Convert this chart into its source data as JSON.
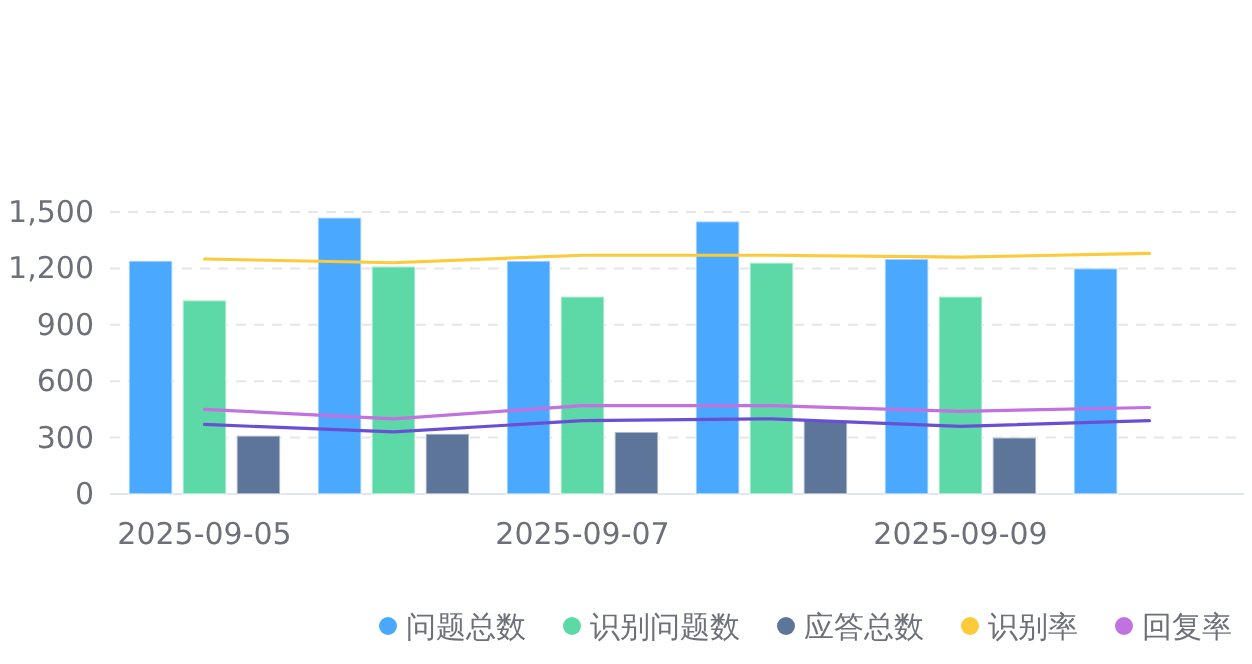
{
  "chart_data": {
    "type": "bar",
    "categories": [
      "2025-09-05",
      null,
      "2025-09-07",
      null,
      "2025-09-09",
      null
    ],
    "series": [
      {
        "name": "问题总数",
        "color": "#4aa8ff",
        "values": [
          1240,
          1470,
          1240,
          1450,
          1250,
          1200
        ]
      },
      {
        "name": "识别问题数",
        "color": "#5cd9a6",
        "values": [
          1030,
          1210,
          1050,
          1230,
          1050,
          null
        ]
      },
      {
        "name": "应答总数",
        "color": "#5d7599",
        "values": [
          310,
          320,
          330,
          390,
          300,
          null
        ]
      },
      {
        "name": "识别率",
        "type": "line",
        "color": "#fdca3a",
        "values": [
          1250,
          1230,
          1270,
          1270,
          1260,
          1280
        ]
      },
      {
        "name": "回复率",
        "type": "line",
        "color": "#c172e0",
        "values": [
          450,
          400,
          470,
          470,
          440,
          460
        ]
      },
      {
        "type": "line",
        "color": "#6a4fd6",
        "values": [
          370,
          330,
          390,
          400,
          360,
          390
        ]
      }
    ],
    "ylim": [
      0,
      1500
    ],
    "yticks": [
      0,
      300,
      600,
      900,
      {
        "value": 1200,
        "label": "1,200"
      },
      {
        "value": 1500,
        "label": "1,500"
      }
    ],
    "grid": "y",
    "legend": "bottom right",
    "marker": "none",
    "line_style": "solid"
  }
}
